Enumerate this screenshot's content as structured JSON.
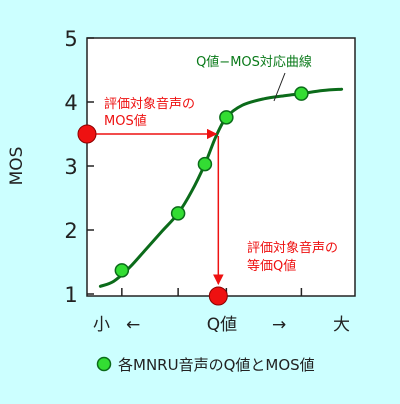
{
  "colors": {
    "background": "#ccffff",
    "plot_area": "#ffffff",
    "curve": "#0b6b1a",
    "curve_label": "#0a7a1a",
    "point_fill": "#33dd33",
    "point_stroke": "#0b6b1a",
    "highlight": "#ee1111",
    "axis": "#222222"
  },
  "chart_data": {
    "type": "scatter",
    "title": "",
    "xlabel": "Q値",
    "ylabel": "MOS",
    "ylim": [
      1,
      5
    ],
    "yticks": [
      1,
      2,
      3,
      4,
      5
    ],
    "xlim": [
      0,
      10
    ],
    "grid": false,
    "x_axis_left_label": "小",
    "x_axis_right_label": "大",
    "x_axis_left_arrow": "←",
    "x_axis_right_arrow": "→",
    "curve_label": "Q値−MOS対応曲線",
    "series": [
      {
        "name": "各MNRU音声のQ値とMOS値",
        "points": [
          {
            "x": 1.3,
            "y": 1.37
          },
          {
            "x": 3.4,
            "y": 2.26
          },
          {
            "x": 4.4,
            "y": 3.03
          },
          {
            "x": 5.2,
            "y": 3.76
          },
          {
            "x": 8.0,
            "y": 4.13
          }
        ]
      }
    ],
    "curve_samples": [
      {
        "x": 0.5,
        "y": 1.12
      },
      {
        "x": 1.0,
        "y": 1.2
      },
      {
        "x": 1.6,
        "y": 1.42
      },
      {
        "x": 2.2,
        "y": 1.7
      },
      {
        "x": 2.8,
        "y": 1.98
      },
      {
        "x": 3.4,
        "y": 2.26
      },
      {
        "x": 3.9,
        "y": 2.6
      },
      {
        "x": 4.4,
        "y": 3.03
      },
      {
        "x": 4.8,
        "y": 3.45
      },
      {
        "x": 5.2,
        "y": 3.76
      },
      {
        "x": 5.8,
        "y": 3.95
      },
      {
        "x": 6.6,
        "y": 4.05
      },
      {
        "x": 7.4,
        "y": 4.1
      },
      {
        "x": 8.0,
        "y": 4.13
      },
      {
        "x": 8.8,
        "y": 4.18
      },
      {
        "x": 9.5,
        "y": 4.2
      }
    ],
    "evaluated": {
      "mos": 3.5,
      "q": 4.9,
      "mos_label_lines": [
        "評価対象音声の",
        "MOS値"
      ],
      "q_label_lines": [
        "評価対象音声の",
        "等価Q値"
      ]
    },
    "legend": {
      "text": "各MNRU音声のQ値とMOS値",
      "position": "bottom"
    }
  }
}
